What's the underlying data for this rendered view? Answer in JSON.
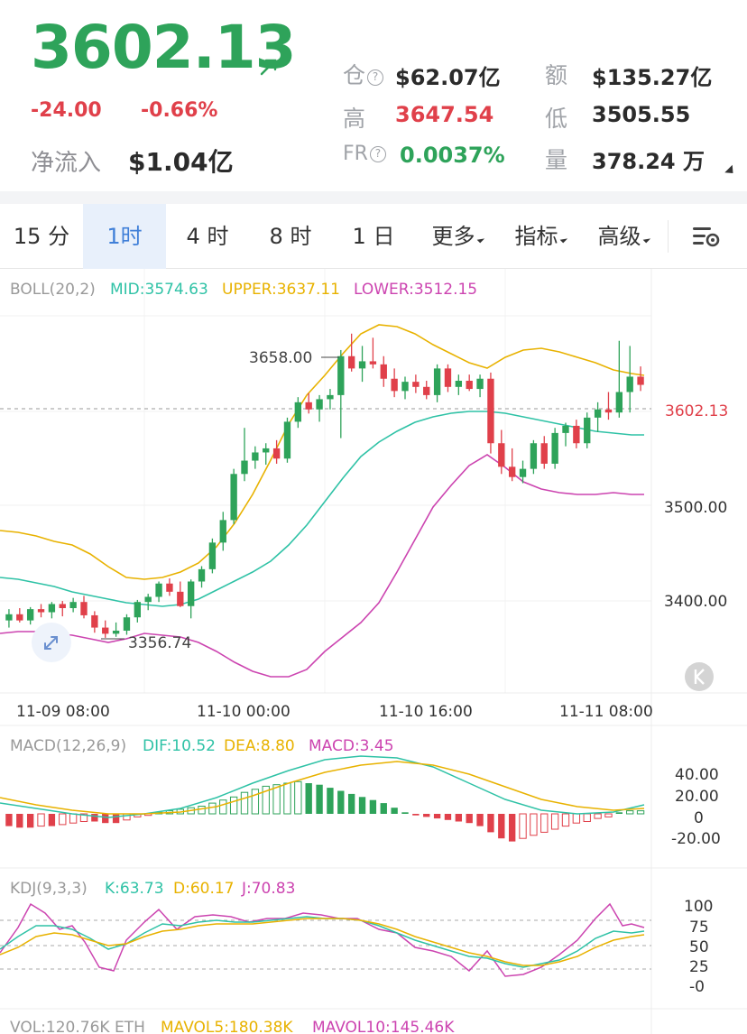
{
  "header": {
    "price": "3602.13",
    "change_abs": "-24.00",
    "change_pct": "-0.66%",
    "net_flow_label": "净流入",
    "net_flow_value": "$1.04亿",
    "stats": {
      "position_label": "仓",
      "position_value": "$62.07亿",
      "amount_label": "额",
      "amount_value": "$135.27亿",
      "high_label": "高",
      "high_value": "3647.54",
      "low_label": "低",
      "low_value": "3505.55",
      "fr_label": "FR",
      "fr_value": "0.0037%",
      "volume_label": "量",
      "volume_value": "378.24 万"
    }
  },
  "tabs": [
    {
      "label": "15 分",
      "active": false
    },
    {
      "label": "1时",
      "active": true
    },
    {
      "label": "4 时",
      "active": false
    },
    {
      "label": "8 时",
      "active": false
    },
    {
      "label": "1 日",
      "active": false
    },
    {
      "label": "更多",
      "active": false,
      "dropdown": true
    },
    {
      "label": "指标",
      "active": false,
      "dropdown": true
    },
    {
      "label": "高级",
      "active": false,
      "dropdown": true
    }
  ],
  "colors": {
    "up": "#2ea35a",
    "down": "#e0404a",
    "mid": "#2fc2a6",
    "upper": "#e8b200",
    "lower": "#cc44b0",
    "price_tag": "#e0404a",
    "active_tab": "#3f7fd8"
  },
  "boll": {
    "label": "BOLL(20,2)",
    "mid": "MID:3574.63",
    "upper": "UPPER:3637.11",
    "lower": "LOWER:3512.15"
  },
  "macd": {
    "label": "MACD(12,26,9)",
    "dif": "DIF:10.52",
    "dea": "DEA:8.80",
    "macd": "MACD:3.45",
    "ticks": [
      "40.00",
      "20.00",
      "0",
      "-20.00"
    ]
  },
  "kdj": {
    "label": "KDJ(9,3,3)",
    "k": "K:63.73",
    "d": "D:60.17",
    "j": "J:70.83",
    "ticks": [
      "100",
      "75",
      "50",
      "25",
      "-0"
    ]
  },
  "vol": {
    "label": "VOL:120.76K ETH",
    "mavol5": "MAVOL5:180.38K",
    "mavol10": "MAVOL10:145.46K"
  },
  "main_chart": {
    "current_price_tag": "3602.13",
    "y_ticks": [
      "3500.00",
      "3400.00"
    ],
    "high_marker": "3658.00",
    "low_marker": "3356.74",
    "x_ticks": [
      "11-09 08:00",
      "11-10 00:00",
      "11-10 16:00",
      "11-11 08:00"
    ]
  },
  "chart_data": {
    "type": "candlestick",
    "interval": "1h",
    "y_range": [
      3310,
      3680
    ],
    "candles": [
      [
        3372,
        3383,
        3365,
        3378
      ],
      [
        3378,
        3384,
        3370,
        3372
      ],
      [
        3372,
        3385,
        3368,
        3383
      ],
      [
        3383,
        3388,
        3375,
        3380
      ],
      [
        3380,
        3390,
        3374,
        3388
      ],
      [
        3388,
        3391,
        3376,
        3384
      ],
      [
        3384,
        3394,
        3380,
        3390
      ],
      [
        3390,
        3396,
        3374,
        3377
      ],
      [
        3377,
        3381,
        3360,
        3365
      ],
      [
        3365,
        3372,
        3355,
        3359
      ],
      [
        3359,
        3370,
        3356,
        3362
      ],
      [
        3362,
        3378,
        3358,
        3375
      ],
      [
        3375,
        3392,
        3370,
        3390
      ],
      [
        3390,
        3398,
        3382,
        3395
      ],
      [
        3395,
        3410,
        3390,
        3408
      ],
      [
        3408,
        3413,
        3396,
        3400
      ],
      [
        3400,
        3410,
        3385,
        3386
      ],
      [
        3386,
        3412,
        3374,
        3410
      ],
      [
        3410,
        3425,
        3404,
        3422
      ],
      [
        3422,
        3452,
        3418,
        3448
      ],
      [
        3448,
        3478,
        3440,
        3470
      ],
      [
        3470,
        3520,
        3466,
        3515
      ],
      [
        3515,
        3560,
        3508,
        3528
      ],
      [
        3528,
        3542,
        3520,
        3536
      ],
      [
        3536,
        3545,
        3524,
        3540
      ],
      [
        3540,
        3548,
        3525,
        3530
      ],
      [
        3530,
        3570,
        3526,
        3566
      ],
      [
        3566,
        3590,
        3560,
        3585
      ],
      [
        3585,
        3594,
        3574,
        3578
      ],
      [
        3578,
        3592,
        3566,
        3588
      ],
      [
        3588,
        3598,
        3578,
        3592
      ],
      [
        3592,
        3636,
        3550,
        3630
      ],
      [
        3630,
        3652,
        3615,
        3618
      ],
      [
        3618,
        3640,
        3605,
        3625
      ],
      [
        3625,
        3648,
        3618,
        3622
      ],
      [
        3622,
        3630,
        3600,
        3608
      ],
      [
        3608,
        3618,
        3590,
        3596
      ],
      [
        3596,
        3610,
        3588,
        3605
      ],
      [
        3605,
        3612,
        3594,
        3600
      ],
      [
        3600,
        3606,
        3588,
        3592
      ],
      [
        3592,
        3622,
        3585,
        3618
      ],
      [
        3618,
        3622,
        3595,
        3600
      ],
      [
        3600,
        3612,
        3592,
        3606
      ],
      [
        3606,
        3612,
        3596,
        3598
      ],
      [
        3598,
        3612,
        3590,
        3608
      ],
      [
        3608,
        3614,
        3535,
        3545
      ],
      [
        3545,
        3558,
        3515,
        3522
      ],
      [
        3522,
        3540,
        3508,
        3512
      ],
      [
        3512,
        3528,
        3506,
        3520
      ],
      [
        3520,
        3548,
        3515,
        3545
      ],
      [
        3545,
        3552,
        3520,
        3525
      ],
      [
        3525,
        3560,
        3520,
        3555
      ],
      [
        3555,
        3565,
        3542,
        3562
      ],
      [
        3562,
        3568,
        3540,
        3545
      ],
      [
        3545,
        3575,
        3540,
        3570
      ],
      [
        3570,
        3585,
        3556,
        3578
      ],
      [
        3578,
        3595,
        3568,
        3575
      ],
      [
        3575,
        3645,
        3570,
        3595
      ],
      [
        3595,
        3640,
        3575,
        3610
      ],
      [
        3610,
        3620,
        3596,
        3602
      ]
    ]
  }
}
